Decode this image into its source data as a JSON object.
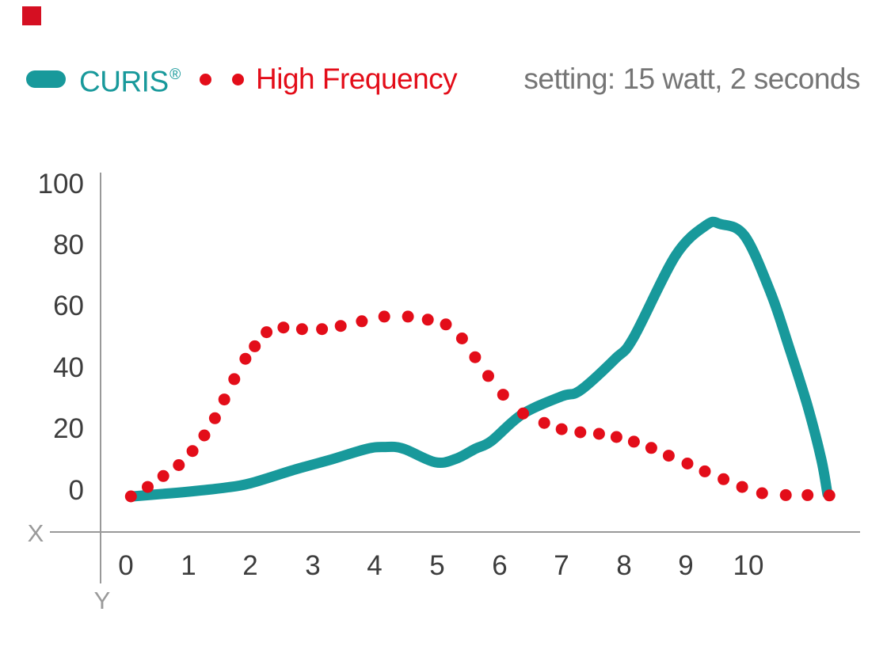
{
  "header": {
    "legend_curis": {
      "label": "CURIS",
      "reg_mark": "®"
    },
    "legend_hf": {
      "label": "High Frequency"
    },
    "setting_label": "setting: 15 watt, 2 seconds"
  },
  "colors": {
    "curis_teal": "#18999b",
    "high_frequency_red": "#e30d19",
    "tick_text": "#3d3d3d",
    "setting_text": "#757575",
    "axis_line": "#999999",
    "axis_letter": "#9a9a9a",
    "brand_square": "#d50f22"
  },
  "chart_data": {
    "type": "line",
    "title": "",
    "annotation": "setting: 15 watt, 2 seconds",
    "axis_x_label": "X",
    "axis_y_label": "Y",
    "x_ticks": [
      0,
      1,
      2,
      3,
      4,
      5,
      6,
      7,
      8,
      9,
      10
    ],
    "y_ticks": [
      0,
      20,
      40,
      60,
      80,
      100
    ],
    "xlim": [
      0,
      11.5
    ],
    "ylim": [
      0,
      100
    ],
    "grid": false,
    "legend_position": "top",
    "series": [
      {
        "name": "CURIS®",
        "style": "smooth-solid-line",
        "color": "#18999b",
        "points": [
          [
            0.11,
            0
          ],
          [
            0.6,
            0.8
          ],
          [
            1,
            1.5
          ],
          [
            1.6,
            2.8
          ],
          [
            2,
            4.2
          ],
          [
            2.72,
            8.6
          ],
          [
            3.3,
            11.8
          ],
          [
            3.87,
            15.2
          ],
          [
            4.15,
            15.8
          ],
          [
            4.45,
            15.3
          ],
          [
            4.97,
            10.9
          ],
          [
            5.3,
            12
          ],
          [
            5.61,
            15.2
          ],
          [
            5.87,
            17.7
          ],
          [
            6.37,
            26.3
          ],
          [
            7,
            32
          ],
          [
            7.3,
            33.9
          ],
          [
            7.86,
            44
          ],
          [
            8.15,
            50.6
          ],
          [
            8.83,
            77
          ],
          [
            9.33,
            86.8
          ],
          [
            9.55,
            87.1
          ],
          [
            9.94,
            83.3
          ],
          [
            10.36,
            65
          ],
          [
            10.67,
            46.6
          ],
          [
            10.95,
            28.9
          ],
          [
            11.17,
            11.9
          ],
          [
            11.27,
            0.8
          ]
        ]
      },
      {
        "name": "High Frequency",
        "style": "dotted",
        "color": "#e30d19",
        "points": [
          [
            0.08,
            0
          ],
          [
            0.35,
            3
          ],
          [
            0.6,
            6.5
          ],
          [
            0.85,
            10
          ],
          [
            1.07,
            14.5
          ],
          [
            1.26,
            19.5
          ],
          [
            1.43,
            25
          ],
          [
            1.58,
            31
          ],
          [
            1.74,
            37.5
          ],
          [
            1.92,
            44
          ],
          [
            2.07,
            48
          ],
          [
            2.26,
            52.5
          ],
          [
            2.53,
            54
          ],
          [
            2.83,
            53.5
          ],
          [
            3.15,
            53.5
          ],
          [
            3.45,
            54.5
          ],
          [
            3.79,
            56
          ],
          [
            4.15,
            57.5
          ],
          [
            4.53,
            57.5
          ],
          [
            4.85,
            56.5
          ],
          [
            5.14,
            55
          ],
          [
            5.4,
            50.5
          ],
          [
            5.61,
            44.5
          ],
          [
            5.82,
            38.5
          ],
          [
            6.06,
            32.5
          ],
          [
            6.38,
            26.5
          ],
          [
            6.72,
            23.5
          ],
          [
            7.0,
            21.5
          ],
          [
            7.3,
            20.5
          ],
          [
            7.6,
            20
          ],
          [
            7.88,
            19
          ],
          [
            8.16,
            17.5
          ],
          [
            8.44,
            15.5
          ],
          [
            8.72,
            13
          ],
          [
            9.02,
            10.5
          ],
          [
            9.3,
            8
          ],
          [
            9.6,
            5.5
          ],
          [
            9.9,
            3
          ],
          [
            10.22,
            1
          ],
          [
            10.6,
            0.4
          ],
          [
            10.95,
            0.4
          ],
          [
            11.3,
            0.3
          ]
        ]
      }
    ]
  }
}
